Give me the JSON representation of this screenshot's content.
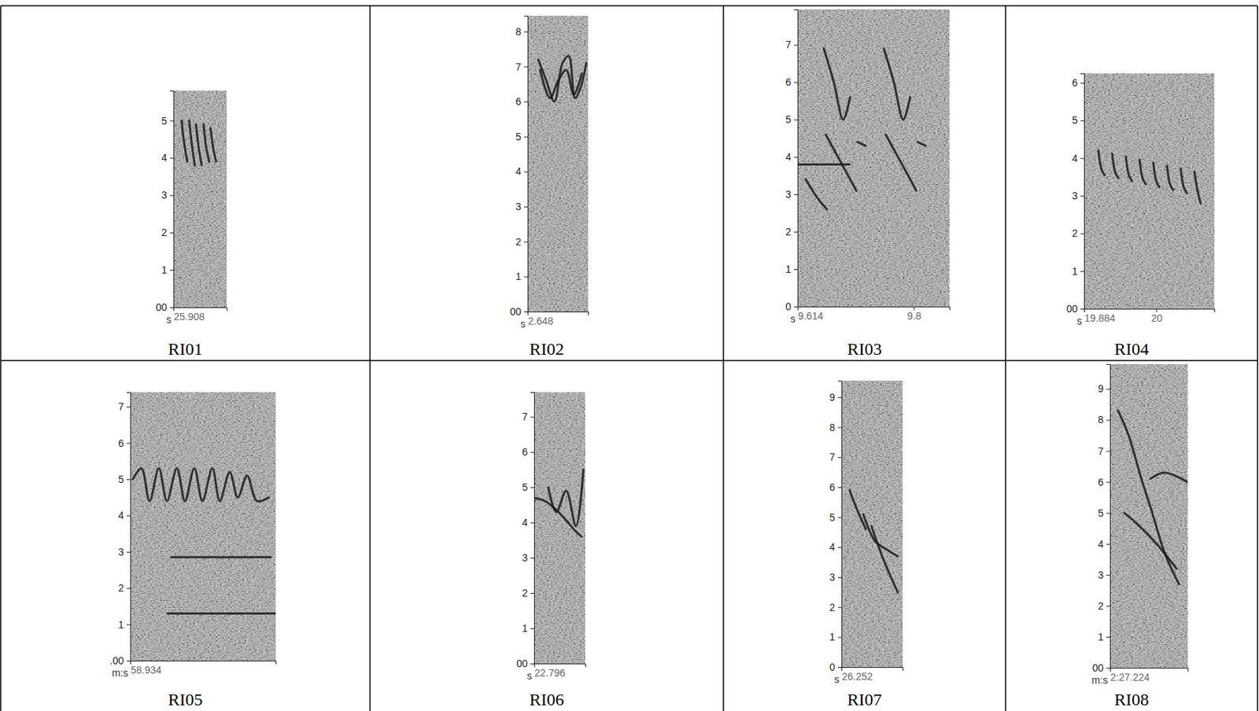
{
  "chart_data": [
    {
      "type": "line",
      "title": "RI01",
      "xlabel": "s",
      "color": "#1a1a1a",
      "grid": false,
      "xlim": [
        25.908,
        25.993
      ],
      "xticks": [
        25.908
      ],
      "ylim": [
        0,
        5.8
      ],
      "yticks": [
        {
          "value": 0,
          "label": "00"
        },
        1,
        2,
        3,
        4,
        5
      ],
      "series": [
        {
          "x": [
            25.921,
            25.925,
            25.93
          ],
          "values": [
            5.0,
            4.4,
            3.9
          ]
        },
        {
          "x": [
            25.933,
            25.937,
            25.942
          ],
          "values": [
            5.0,
            4.4,
            3.8
          ]
        },
        {
          "x": [
            25.944,
            25.948,
            25.953
          ],
          "values": [
            4.9,
            4.3,
            3.8
          ]
        },
        {
          "x": [
            25.956,
            25.96,
            25.965
          ],
          "values": [
            4.9,
            4.3,
            3.9
          ]
        },
        {
          "x": [
            25.967,
            25.971,
            25.976
          ],
          "values": [
            4.8,
            4.3,
            3.9
          ]
        }
      ]
    },
    {
      "type": "line",
      "title": "RI02",
      "xlabel": "s",
      "color": "#1a1a1a",
      "grid": false,
      "xlim": [
        2.648,
        2.745
      ],
      "xticks": [
        2.648
      ],
      "ylim": [
        0,
        8.45
      ],
      "yticks": [
        {
          "value": 0,
          "label": "00"
        },
        1,
        2,
        3,
        4,
        5,
        6,
        7,
        8
      ],
      "series": [
        {
          "x": [
            2.665,
            2.678,
            2.691,
            2.704,
            2.714,
            2.724,
            2.733,
            2.742
          ],
          "values": [
            7.2,
            6.6,
            6.0,
            7.1,
            7.3,
            6.1,
            6.4,
            7.1
          ]
        },
        {
          "x": [
            2.668,
            2.684,
            2.697,
            2.71,
            2.722,
            2.735
          ],
          "values": [
            6.9,
            6.1,
            6.6,
            6.9,
            6.2,
            6.8
          ]
        }
      ]
    },
    {
      "type": "line",
      "title": "RI03",
      "xlabel": "s",
      "color": "#1a1a1a",
      "grid": false,
      "xlim": [
        9.614,
        9.857
      ],
      "xticks": [
        9.614,
        9.8
      ],
      "ylim": [
        0,
        7.95
      ],
      "yticks": [
        0,
        1,
        2,
        3,
        4,
        5,
        6,
        7
      ],
      "series": [
        {
          "x": [
            9.614,
            9.697
          ],
          "values": [
            3.8,
            3.8
          ]
        },
        {
          "x": [
            9.656,
            9.672,
            9.687,
            9.698
          ],
          "values": [
            6.9,
            6.0,
            5.0,
            5.6
          ]
        },
        {
          "x": [
            9.659,
            9.682,
            9.708
          ],
          "values": [
            4.6,
            3.9,
            3.1
          ]
        },
        {
          "x": [
            9.627,
            9.646,
            9.661
          ],
          "values": [
            3.4,
            2.9,
            2.6
          ]
        },
        {
          "x": [
            9.71,
            9.723
          ],
          "values": [
            4.4,
            4.3
          ]
        },
        {
          "x": [
            9.752,
            9.768,
            9.783,
            9.794
          ],
          "values": [
            6.9,
            6.0,
            5.0,
            5.6
          ]
        },
        {
          "x": [
            9.755,
            9.778,
            9.804
          ],
          "values": [
            4.6,
            3.9,
            3.1
          ]
        },
        {
          "x": [
            9.806,
            9.819
          ],
          "values": [
            4.4,
            4.3
          ]
        }
      ]
    },
    {
      "type": "line",
      "title": "RI04",
      "xlabel": "s",
      "color": "#1a1a1a",
      "grid": false,
      "xlim": [
        19.884,
        20.093
      ],
      "xticks": [
        19.884,
        20
      ],
      "ylim": [
        0,
        6.25
      ],
      "yticks": [
        {
          "value": 0,
          "label": "00"
        },
        1,
        2,
        3,
        4,
        5,
        6
      ],
      "series": [
        {
          "x": [
            19.907,
            19.912,
            19.917
          ],
          "values": [
            4.2,
            3.7,
            3.55
          ]
        },
        {
          "x": [
            19.929,
            19.934,
            19.939
          ],
          "values": [
            4.12,
            3.62,
            3.47
          ]
        },
        {
          "x": [
            19.951,
            19.956,
            19.961
          ],
          "values": [
            4.04,
            3.54,
            3.39
          ]
        },
        {
          "x": [
            19.973,
            19.978,
            19.983
          ],
          "values": [
            3.96,
            3.46,
            3.31
          ]
        },
        {
          "x": [
            19.995,
            20.0,
            20.005
          ],
          "values": [
            3.88,
            3.38,
            3.23
          ]
        },
        {
          "x": [
            20.017,
            20.022,
            20.027
          ],
          "values": [
            3.8,
            3.3,
            3.15
          ]
        },
        {
          "x": [
            20.039,
            20.044,
            20.049
          ],
          "values": [
            3.72,
            3.22,
            3.07
          ]
        },
        {
          "x": [
            20.061,
            20.066,
            20.071
          ],
          "values": [
            3.64,
            3.14,
            2.8
          ]
        }
      ]
    },
    {
      "type": "line",
      "title": "RI05",
      "xlabel": "m:s",
      "color": "#1a1a1a",
      "grid": false,
      "xlim": [
        58.934,
        59.168
      ],
      "xticks": [
        58.934
      ],
      "ylim": [
        0,
        7.4
      ],
      "yticks": [
        {
          "value": 0,
          "label": ".00"
        },
        1,
        2,
        3,
        4,
        5,
        6,
        7
      ],
      "series": [
        {
          "x": [
            58.938,
            58.952,
            58.965,
            58.98,
            58.993,
            59.009,
            59.022,
            59.037,
            59.05,
            59.066,
            59.078,
            59.094,
            59.107,
            59.122,
            59.138,
            59.157
          ],
          "values": [
            5.0,
            5.3,
            4.4,
            5.3,
            4.4,
            5.3,
            4.4,
            5.3,
            4.4,
            5.3,
            4.4,
            5.2,
            4.5,
            5.1,
            4.4,
            4.5
          ]
        },
        {
          "x": [
            58.994,
            59.168
          ],
          "values": [
            1.3,
            1.3
          ]
        },
        {
          "x": [
            59.0,
            59.16
          ],
          "values": [
            2.85,
            2.85
          ]
        }
      ]
    },
    {
      "type": "line",
      "title": "RI06",
      "xlabel": "s",
      "color": "#1a1a1a",
      "grid": false,
      "xlim": [
        22.796,
        22.879
      ],
      "xticks": [
        22.796
      ],
      "ylim": [
        0,
        7.7
      ],
      "yticks": [
        {
          "value": 0,
          "label": "00"
        },
        1,
        2,
        3,
        4,
        5,
        6,
        7
      ],
      "series": [
        {
          "x": [
            22.796,
            22.815,
            22.841,
            22.861,
            22.873
          ],
          "values": [
            4.7,
            4.6,
            4.2,
            3.8,
            3.6
          ]
        },
        {
          "x": [
            22.819,
            22.832,
            22.848,
            22.864,
            22.876
          ],
          "values": [
            5.0,
            4.3,
            4.9,
            3.9,
            5.5
          ]
        }
      ]
    },
    {
      "type": "line",
      "title": "RI07",
      "xlabel": "s",
      "color": "#1a1a1a",
      "grid": false,
      "xlim": [
        26.252,
        26.35
      ],
      "xticks": [
        26.252
      ],
      "ylim": [
        0,
        9.55
      ],
      "yticks": [
        0,
        1,
        2,
        3,
        4,
        5,
        6,
        7,
        8,
        9
      ],
      "series": [
        {
          "x": [
            26.265,
            26.278,
            26.291
          ],
          "values": [
            5.9,
            5.2,
            4.6
          ]
        },
        {
          "x": [
            26.287,
            26.306,
            26.326,
            26.342
          ],
          "values": [
            5.1,
            4.2,
            3.9,
            3.7
          ]
        },
        {
          "x": [
            26.3,
            26.319,
            26.342
          ],
          "values": [
            4.7,
            3.6,
            2.5
          ]
        }
      ]
    },
    {
      "type": "line",
      "title": "RI08",
      "xlabel": "m:s",
      "color": "#1a1a1a",
      "grid": false,
      "xlim": [
        147.224,
        147.349
      ],
      "xticks": [
        {
          "value": 147.224,
          "label": "2:27.224"
        }
      ],
      "ylim": [
        0,
        9.8
      ],
      "yticks": [
        {
          "value": 0,
          "label": "00"
        },
        1,
        2,
        3,
        4,
        5,
        6,
        7,
        8,
        9
      ],
      "series": [
        {
          "x": [
            147.237,
            147.254,
            147.273,
            147.292,
            147.312,
            147.335
          ],
          "values": [
            8.3,
            7.5,
            6.2,
            5.0,
            3.7,
            2.7
          ]
        },
        {
          "x": [
            147.247,
            147.27,
            147.299,
            147.331
          ],
          "values": [
            5.0,
            4.6,
            4.0,
            3.2
          ]
        },
        {
          "x": [
            147.289,
            147.312,
            147.348
          ],
          "values": [
            6.1,
            6.3,
            6.0
          ]
        }
      ]
    }
  ]
}
